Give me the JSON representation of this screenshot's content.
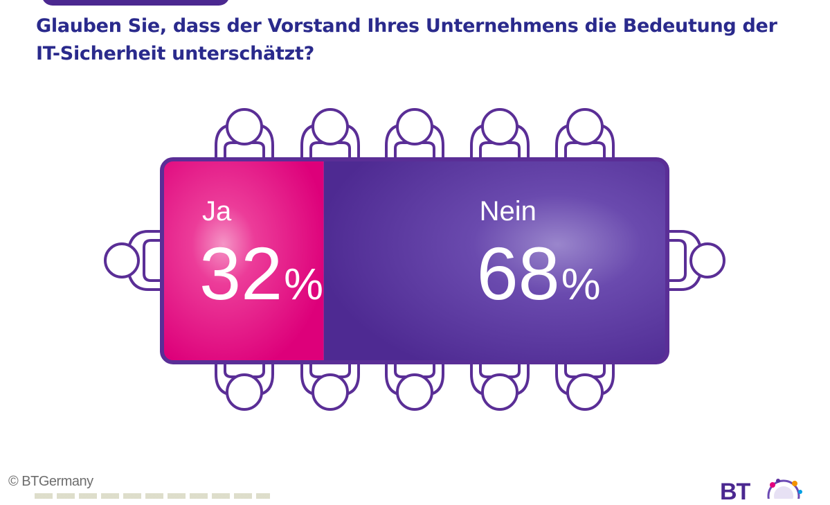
{
  "question": {
    "line1": "Glauben Sie, dass der Vorstand Ihres Unternehmens die Bedeutung der",
    "line2": "IT-Sicherheit unterschätzt?"
  },
  "chart_data": {
    "type": "bar",
    "categories": [
      "Ja",
      "Nein"
    ],
    "values": [
      32,
      68
    ],
    "value_labels": [
      "32%",
      "68%"
    ],
    "unit": "%",
    "colors": [
      "#e3007e",
      "#5b2f9e"
    ]
  },
  "footer": {
    "copyright": "© BTGermany",
    "logo_text": "BT"
  },
  "colors": {
    "title": "#2a2a8c",
    "outline": "#5a2e96",
    "ja": "#e3007e",
    "nein": "#5b2f9e"
  }
}
